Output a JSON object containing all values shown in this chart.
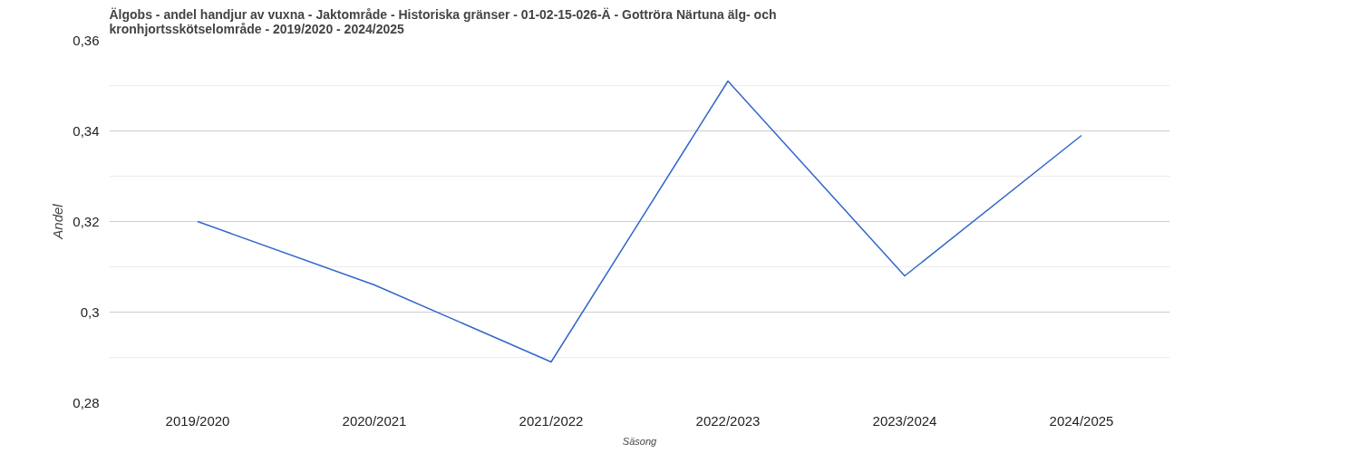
{
  "chart_data": {
    "type": "line",
    "title": "Älgobs - andel handjur av vuxna - Jaktområde - Historiska gränser - 01-02-15-026-Ä - Gottröra Närtuna älg- och kronhjortsskötselområde - 2019/2020 - 2024/2025",
    "xlabel": "Säsong",
    "ylabel": "Andel",
    "categories": [
      "2019/2020",
      "2020/2021",
      "2021/2022",
      "2022/2023",
      "2023/2024",
      "2024/2025"
    ],
    "series": [
      {
        "color": "#3366cc",
        "values": [
          0.32,
          0.306,
          0.289,
          0.351,
          0.308,
          0.339
        ]
      }
    ],
    "ylim": [
      0.28,
      0.36
    ],
    "yticks": [
      {
        "value": 0.28,
        "label": "0,28"
      },
      {
        "value": 0.3,
        "label": "0,3"
      },
      {
        "value": 0.32,
        "label": "0,32"
      },
      {
        "value": 0.34,
        "label": "0,34"
      },
      {
        "value": 0.36,
        "label": "0,36"
      }
    ],
    "grid": "y",
    "marker": "none",
    "line_style": "solid"
  }
}
